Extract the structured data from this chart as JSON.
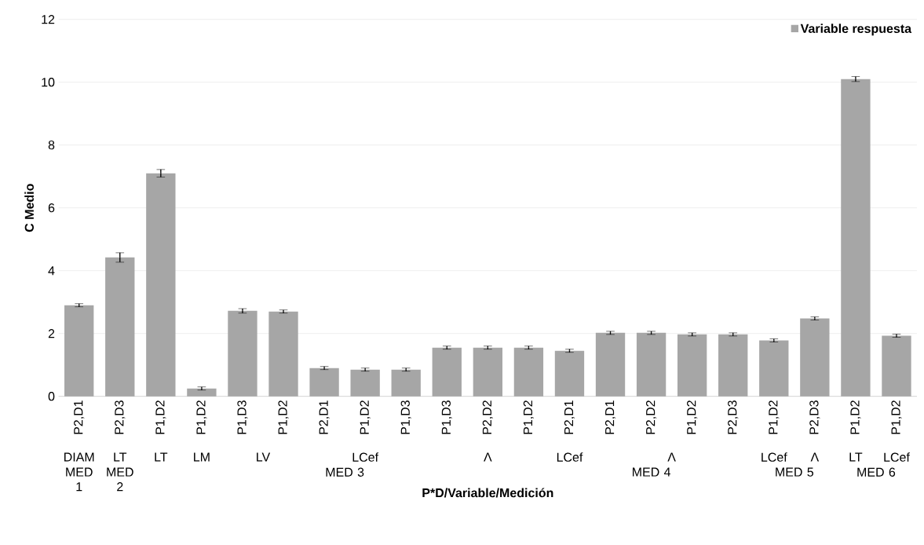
{
  "chart_data": {
    "type": "bar",
    "xlabel": "P*D/Variable/Medición",
    "ylabel": "C Medio",
    "categories": [
      "P2,D1",
      "P2,D3",
      "P1,D2",
      "P1,D2",
      "P1,D3",
      "P1,D2",
      "P2,D1",
      "P1,D2",
      "P1,D3",
      "P1,D3",
      "P2,D2",
      "P1,D2",
      "P2,D1",
      "P2,D1",
      "P2,D2",
      "P1,D2",
      "P2,D3",
      "P1,D2",
      "P2,D3",
      "P1,D2",
      "P1,D2"
    ],
    "series": [
      {
        "name": "Variable respuesta",
        "color": "#a6a6a6",
        "values": [
          2.9,
          4.42,
          7.1,
          0.25,
          2.72,
          2.7,
          0.9,
          0.85,
          0.85,
          1.55,
          1.55,
          1.55,
          1.45,
          2.02,
          2.02,
          1.97,
          1.97,
          1.78,
          2.48,
          10.1,
          1.93
        ],
        "errors": [
          0.05,
          0.15,
          0.12,
          0.05,
          0.07,
          0.05,
          0.05,
          0.05,
          0.05,
          0.05,
          0.05,
          0.05,
          0.05,
          0.05,
          0.05,
          0.05,
          0.05,
          0.05,
          0.05,
          0.08,
          0.05
        ]
      }
    ],
    "annotations": [
      "DIAM",
      "LT",
      "LT",
      "LM",
      "LV",
      "LCef",
      "Λ",
      "LCef",
      "Λ",
      "LCef",
      "Λ",
      "LT",
      "LCef",
      "MED 1",
      "MED 2",
      "MED 3",
      "MED 4",
      "MED 5",
      "MED 6"
    ],
    "ylim": [
      0,
      12
    ],
    "yticks": [
      0,
      2,
      4,
      6,
      8,
      10,
      12
    ],
    "grid": "y",
    "legend": "top right"
  }
}
